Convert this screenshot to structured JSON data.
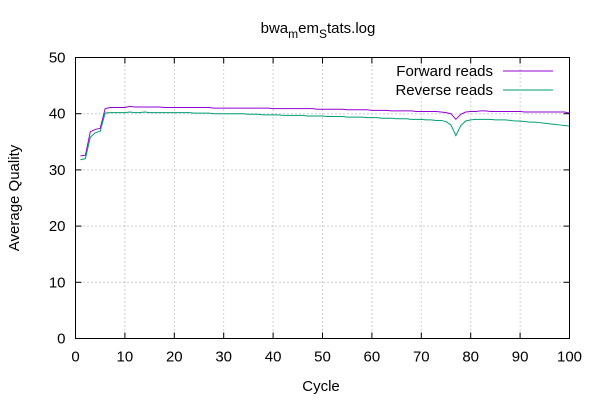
{
  "chart_data": {
    "type": "line",
    "title": {
      "parts": [
        {
          "text": "bwa",
          "sub": false
        },
        {
          "text": "m",
          "sub": true
        },
        {
          "text": "em",
          "sub": false
        },
        {
          "text": "S",
          "sub": true
        },
        {
          "text": "tats.log",
          "sub": false
        }
      ]
    },
    "xlabel": "Cycle",
    "ylabel": "Average Quality",
    "xlim": [
      0,
      100
    ],
    "ylim": [
      0,
      50
    ],
    "xticks": [
      0,
      10,
      20,
      30,
      40,
      50,
      60,
      70,
      80,
      90,
      100
    ],
    "yticks": [
      0,
      10,
      20,
      30,
      40,
      50
    ],
    "grid": true,
    "legend_position": "top-right",
    "series": [
      {
        "name": "Forward reads",
        "color": "#9400d3",
        "points": [
          [
            1,
            32.5
          ],
          [
            2,
            32.6
          ],
          [
            3,
            36.8
          ],
          [
            4,
            37.2
          ],
          [
            5,
            37.4
          ],
          [
            6,
            40.9
          ],
          [
            7,
            41.1
          ],
          [
            8,
            41.1
          ],
          [
            9,
            41.1
          ],
          [
            10,
            41.1
          ],
          [
            11,
            41.3
          ],
          [
            12,
            41.2
          ],
          [
            13,
            41.2
          ],
          [
            14,
            41.2
          ],
          [
            15,
            41.2
          ],
          [
            16,
            41.2
          ],
          [
            17,
            41.2
          ],
          [
            18,
            41.1
          ],
          [
            19,
            41.1
          ],
          [
            20,
            41.1
          ],
          [
            21,
            41.1
          ],
          [
            22,
            41.1
          ],
          [
            23,
            41.1
          ],
          [
            24,
            41.1
          ],
          [
            25,
            41.1
          ],
          [
            26,
            41.1
          ],
          [
            27,
            41.1
          ],
          [
            28,
            41.0
          ],
          [
            29,
            41.0
          ],
          [
            30,
            41.0
          ],
          [
            31,
            41.0
          ],
          [
            32,
            41.0
          ],
          [
            33,
            41.0
          ],
          [
            34,
            41.0
          ],
          [
            35,
            41.0
          ],
          [
            36,
            41.0
          ],
          [
            37,
            41.0
          ],
          [
            38,
            41.0
          ],
          [
            39,
            41.0
          ],
          [
            40,
            40.9
          ],
          [
            41,
            40.9
          ],
          [
            42,
            40.9
          ],
          [
            43,
            40.9
          ],
          [
            44,
            40.9
          ],
          [
            45,
            40.9
          ],
          [
            46,
            40.9
          ],
          [
            47,
            40.9
          ],
          [
            48,
            40.9
          ],
          [
            49,
            40.8
          ],
          [
            50,
            40.8
          ],
          [
            51,
            40.8
          ],
          [
            52,
            40.8
          ],
          [
            53,
            40.8
          ],
          [
            54,
            40.8
          ],
          [
            55,
            40.7
          ],
          [
            56,
            40.7
          ],
          [
            57,
            40.7
          ],
          [
            58,
            40.7
          ],
          [
            59,
            40.7
          ],
          [
            60,
            40.6
          ],
          [
            61,
            40.6
          ],
          [
            62,
            40.6
          ],
          [
            63,
            40.6
          ],
          [
            64,
            40.5
          ],
          [
            65,
            40.5
          ],
          [
            66,
            40.5
          ],
          [
            67,
            40.5
          ],
          [
            68,
            40.5
          ],
          [
            69,
            40.4
          ],
          [
            70,
            40.4
          ],
          [
            71,
            40.4
          ],
          [
            72,
            40.4
          ],
          [
            73,
            40.4
          ],
          [
            74,
            40.3
          ],
          [
            75,
            40.2
          ],
          [
            76,
            40.0
          ],
          [
            77,
            39.0
          ],
          [
            78,
            39.9
          ],
          [
            79,
            40.3
          ],
          [
            80,
            40.4
          ],
          [
            81,
            40.4
          ],
          [
            82,
            40.5
          ],
          [
            83,
            40.5
          ],
          [
            84,
            40.4
          ],
          [
            85,
            40.4
          ],
          [
            86,
            40.4
          ],
          [
            87,
            40.4
          ],
          [
            88,
            40.4
          ],
          [
            89,
            40.4
          ],
          [
            90,
            40.4
          ],
          [
            91,
            40.3
          ],
          [
            92,
            40.3
          ],
          [
            93,
            40.3
          ],
          [
            94,
            40.3
          ],
          [
            95,
            40.3
          ],
          [
            96,
            40.3
          ],
          [
            97,
            40.3
          ],
          [
            98,
            40.3
          ],
          [
            99,
            40.3
          ],
          [
            100,
            40.1
          ]
        ]
      },
      {
        "name": "Reverse reads",
        "color": "#009e73",
        "points": [
          [
            1,
            31.8
          ],
          [
            2,
            32.0
          ],
          [
            3,
            35.8
          ],
          [
            4,
            36.6
          ],
          [
            5,
            36.9
          ],
          [
            6,
            40.1
          ],
          [
            7,
            40.2
          ],
          [
            8,
            40.2
          ],
          [
            9,
            40.2
          ],
          [
            10,
            40.2
          ],
          [
            11,
            40.3
          ],
          [
            12,
            40.2
          ],
          [
            13,
            40.2
          ],
          [
            14,
            40.3
          ],
          [
            15,
            40.2
          ],
          [
            16,
            40.2
          ],
          [
            17,
            40.2
          ],
          [
            18,
            40.2
          ],
          [
            19,
            40.2
          ],
          [
            20,
            40.2
          ],
          [
            21,
            40.2
          ],
          [
            22,
            40.2
          ],
          [
            23,
            40.2
          ],
          [
            24,
            40.1
          ],
          [
            25,
            40.1
          ],
          [
            26,
            40.1
          ],
          [
            27,
            40.1
          ],
          [
            28,
            40.0
          ],
          [
            29,
            40.0
          ],
          [
            30,
            40.0
          ],
          [
            31,
            40.0
          ],
          [
            32,
            40.0
          ],
          [
            33,
            40.0
          ],
          [
            34,
            40.0
          ],
          [
            35,
            39.9
          ],
          [
            36,
            39.9
          ],
          [
            37,
            39.9
          ],
          [
            38,
            39.8
          ],
          [
            39,
            39.8
          ],
          [
            40,
            39.8
          ],
          [
            41,
            39.8
          ],
          [
            42,
            39.7
          ],
          [
            43,
            39.7
          ],
          [
            44,
            39.7
          ],
          [
            45,
            39.7
          ],
          [
            46,
            39.7
          ],
          [
            47,
            39.6
          ],
          [
            48,
            39.6
          ],
          [
            49,
            39.6
          ],
          [
            50,
            39.6
          ],
          [
            51,
            39.5
          ],
          [
            52,
            39.5
          ],
          [
            53,
            39.5
          ],
          [
            54,
            39.5
          ],
          [
            55,
            39.4
          ],
          [
            56,
            39.4
          ],
          [
            57,
            39.4
          ],
          [
            58,
            39.4
          ],
          [
            59,
            39.3
          ],
          [
            60,
            39.3
          ],
          [
            61,
            39.3
          ],
          [
            62,
            39.2
          ],
          [
            63,
            39.2
          ],
          [
            64,
            39.2
          ],
          [
            65,
            39.1
          ],
          [
            66,
            39.1
          ],
          [
            67,
            39.1
          ],
          [
            68,
            39.0
          ],
          [
            69,
            39.0
          ],
          [
            70,
            39.0
          ],
          [
            71,
            38.9
          ],
          [
            72,
            38.9
          ],
          [
            73,
            38.8
          ],
          [
            74,
            38.8
          ],
          [
            75,
            38.6
          ],
          [
            76,
            38.0
          ],
          [
            77,
            36.1
          ],
          [
            78,
            37.9
          ],
          [
            79,
            38.7
          ],
          [
            80,
            38.9
          ],
          [
            81,
            39.0
          ],
          [
            82,
            39.0
          ],
          [
            83,
            39.0
          ],
          [
            84,
            39.0
          ],
          [
            85,
            38.9
          ],
          [
            86,
            38.9
          ],
          [
            87,
            38.9
          ],
          [
            88,
            38.8
          ],
          [
            89,
            38.7
          ],
          [
            90,
            38.7
          ],
          [
            91,
            38.6
          ],
          [
            92,
            38.5
          ],
          [
            93,
            38.5
          ],
          [
            94,
            38.4
          ],
          [
            95,
            38.3
          ],
          [
            96,
            38.2
          ],
          [
            97,
            38.1
          ],
          [
            98,
            38.0
          ],
          [
            99,
            37.9
          ],
          [
            100,
            37.8
          ]
        ]
      }
    ]
  }
}
